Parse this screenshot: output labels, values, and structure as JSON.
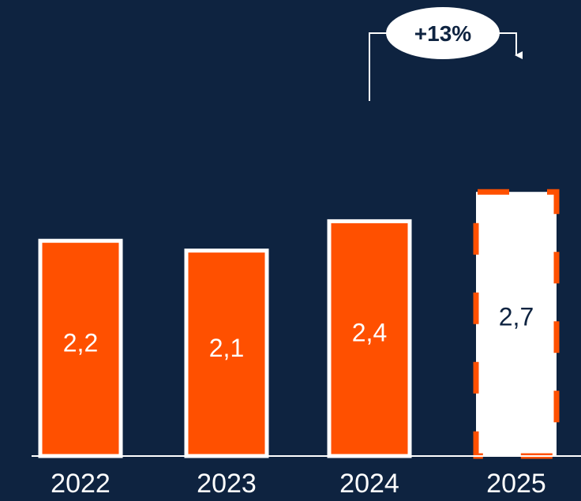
{
  "chart_data": {
    "type": "bar",
    "categories": [
      "2022",
      "2023",
      "2024",
      "2025"
    ],
    "values": [
      2.2,
      2.1,
      2.4,
      2.7
    ],
    "value_labels": [
      "2,2",
      "2,1",
      "2,4",
      "2,7"
    ],
    "projected": [
      false,
      false,
      false,
      true
    ],
    "annotation": {
      "label": "+13%",
      "from": "2024",
      "to": "2025"
    },
    "ylim": [
      0,
      3.3
    ],
    "grid": false,
    "title": "",
    "xlabel": "",
    "ylabel": ""
  },
  "colors": {
    "background": "#0e2340",
    "bar": "#ff5000",
    "bar_outline": "#ffffff",
    "projected_fill": "#ffffff",
    "projected_border": "#ff5000",
    "label_on_bar": "#ffffff",
    "label_on_projected": "#0e2340",
    "axis": "#ffffff"
  }
}
